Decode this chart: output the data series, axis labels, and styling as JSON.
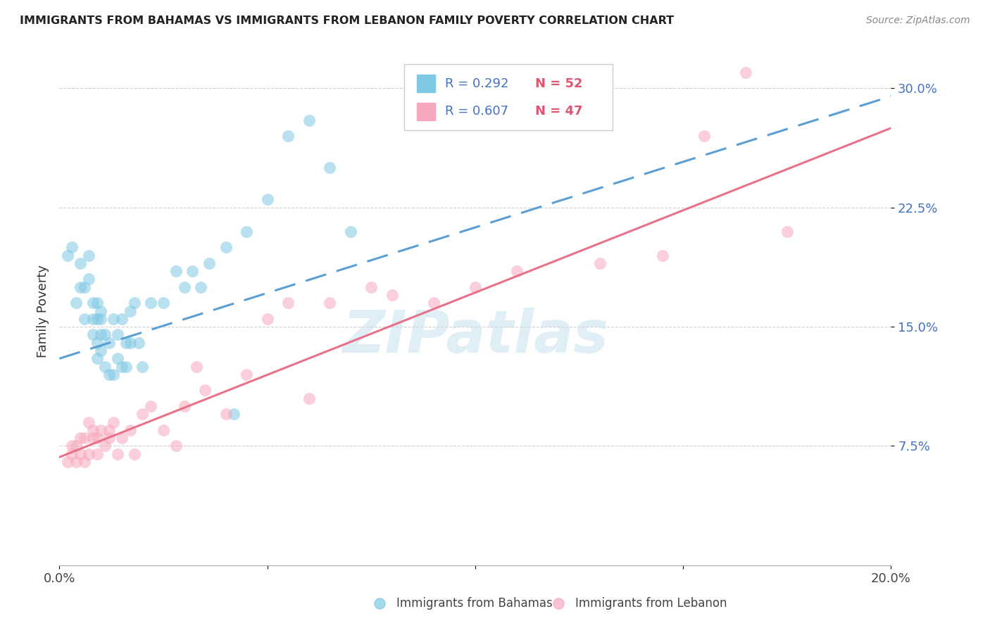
{
  "title": "IMMIGRANTS FROM BAHAMAS VS IMMIGRANTS FROM LEBANON FAMILY POVERTY CORRELATION CHART",
  "source": "Source: ZipAtlas.com",
  "ylabel": "Family Poverty",
  "xlim": [
    0.0,
    0.2
  ],
  "ylim": [
    0.0,
    0.32
  ],
  "yticks": [
    0.075,
    0.15,
    0.225,
    0.3
  ],
  "ytick_labels": [
    "7.5%",
    "15.0%",
    "22.5%",
    "30.0%"
  ],
  "xticks": [
    0.0,
    0.05,
    0.1,
    0.15,
    0.2
  ],
  "xtick_labels": [
    "0.0%",
    "",
    "",
    "",
    "20.0%"
  ],
  "legend_r_bahamas": "R = 0.292",
  "legend_n_bahamas": "N = 52",
  "legend_r_lebanon": "R = 0.607",
  "legend_n_lebanon": "N = 47",
  "color_bahamas": "#7ec8e3",
  "color_lebanon": "#f7a8bf",
  "color_bahamas_line": "#5b9fd4",
  "color_lebanon_line": "#e8728a",
  "watermark": "ZIPatlas",
  "bahamas_x": [
    0.002,
    0.003,
    0.004,
    0.005,
    0.005,
    0.006,
    0.006,
    0.007,
    0.007,
    0.008,
    0.008,
    0.008,
    0.009,
    0.009,
    0.009,
    0.009,
    0.01,
    0.01,
    0.01,
    0.01,
    0.011,
    0.011,
    0.012,
    0.012,
    0.013,
    0.013,
    0.014,
    0.014,
    0.015,
    0.015,
    0.016,
    0.016,
    0.017,
    0.017,
    0.018,
    0.019,
    0.02,
    0.022,
    0.025,
    0.028,
    0.03,
    0.032,
    0.034,
    0.036,
    0.04,
    0.042,
    0.045,
    0.05,
    0.055,
    0.06,
    0.065,
    0.07
  ],
  "bahamas_y": [
    0.195,
    0.2,
    0.165,
    0.19,
    0.175,
    0.175,
    0.155,
    0.18,
    0.195,
    0.145,
    0.155,
    0.165,
    0.13,
    0.14,
    0.155,
    0.165,
    0.135,
    0.145,
    0.155,
    0.16,
    0.125,
    0.145,
    0.12,
    0.14,
    0.12,
    0.155,
    0.13,
    0.145,
    0.125,
    0.155,
    0.125,
    0.14,
    0.14,
    0.16,
    0.165,
    0.14,
    0.125,
    0.165,
    0.165,
    0.185,
    0.175,
    0.185,
    0.175,
    0.19,
    0.2,
    0.095,
    0.21,
    0.23,
    0.27,
    0.28,
    0.25,
    0.21
  ],
  "lebanon_x": [
    0.002,
    0.003,
    0.003,
    0.004,
    0.004,
    0.005,
    0.005,
    0.006,
    0.006,
    0.007,
    0.007,
    0.008,
    0.008,
    0.009,
    0.009,
    0.01,
    0.011,
    0.012,
    0.012,
    0.013,
    0.014,
    0.015,
    0.017,
    0.018,
    0.02,
    0.022,
    0.025,
    0.028,
    0.03,
    0.033,
    0.035,
    0.04,
    0.045,
    0.05,
    0.055,
    0.06,
    0.065,
    0.075,
    0.08,
    0.09,
    0.1,
    0.11,
    0.13,
    0.145,
    0.155,
    0.165,
    0.175
  ],
  "lebanon_y": [
    0.065,
    0.07,
    0.075,
    0.065,
    0.075,
    0.07,
    0.08,
    0.065,
    0.08,
    0.07,
    0.09,
    0.08,
    0.085,
    0.07,
    0.08,
    0.085,
    0.075,
    0.08,
    0.085,
    0.09,
    0.07,
    0.08,
    0.085,
    0.07,
    0.095,
    0.1,
    0.085,
    0.075,
    0.1,
    0.125,
    0.11,
    0.095,
    0.12,
    0.155,
    0.165,
    0.105,
    0.165,
    0.175,
    0.17,
    0.165,
    0.175,
    0.185,
    0.19,
    0.195,
    0.27,
    0.31,
    0.21
  ],
  "bahamas_line_x0": 0.0,
  "bahamas_line_x1": 0.2,
  "bahamas_line_y0": 0.13,
  "bahamas_line_y1": 0.295,
  "lebanon_line_x0": 0.0,
  "lebanon_line_x1": 0.2,
  "lebanon_line_y0": 0.068,
  "lebanon_line_y1": 0.275
}
